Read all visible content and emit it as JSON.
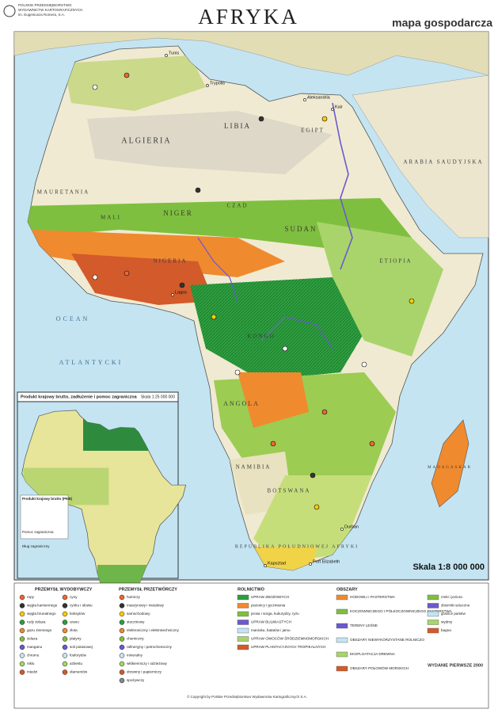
{
  "header": {
    "publisher": [
      "POLSKIE PRZEDSIĘBIORSTWO",
      "WYDAWNICTW KARTOGRAFICZNYCH",
      "im. Eugeniusza Romera, S.A."
    ],
    "title": "AFRYKA",
    "subtitle": "mapa gospodarcza"
  },
  "map": {
    "countries": [
      "ALGIERIA",
      "LIBIA",
      "EGIPT",
      "MAURETANIA",
      "MALI",
      "NIGER",
      "CZAD",
      "SUDAN",
      "ARABIA SAUDYJSKA",
      "ETIOPIA",
      "NIGERIA",
      "KONGO",
      "ANGOLA",
      "NAMIBIA",
      "BOTSWANA",
      "REPUBLIKA POŁUDNIOWEJ AFRYKI",
      "MADAGASKAR"
    ],
    "oceans": [
      "OCEAN",
      "ATLANTYCKI"
    ],
    "cities": [
      "Tunis",
      "Trypolis",
      "Aleksandria",
      "Kair",
      "Lagos",
      "Kapsztad",
      "Port Elizabeth",
      "Durban"
    ]
  },
  "inset": {
    "title": "Produkt krajowy brutto, zadłużenie i pomoc zagraniczna",
    "scale": "Skala 1:25 000 000",
    "legend_title": "Produkt krajowy brutto (PKB)",
    "aid": "Pomoc zagraniczna",
    "debt": "Dług zagraniczny"
  },
  "scale": "Skala 1:8 000 000",
  "legend": [
    {
      "title": "PRZEMYSŁ WYDOBYWCZY",
      "items": [
        "ropy",
        "węgla kamiennego",
        "węgla brunatnego",
        "rudy żelaza",
        "gazu ziemnego",
        "żelaza",
        "manganu",
        "chromu",
        "niklu",
        "miedzi"
      ]
    },
    {
      "title": "",
      "items": [
        "cyny",
        "cynku i ołowiu",
        "boksytów",
        "uranu",
        "złota",
        "platyny",
        "soli potasowej",
        "fosforytów",
        "azbestu",
        "diamentów"
      ]
    },
    {
      "title": "PRZEMYSŁ PRZETWÓRCZY",
      "items": [
        "hutniczy",
        "maszynowy i metalowy",
        "samochodowy",
        "stoczniowy",
        "elektroniczny i elektrotechniczny",
        "chemiczny",
        "rafineryjny i petrochemiczny",
        "mineralny",
        "włókienniczy i odzieżowy",
        "drzewny i papierniczy",
        "spożywczy"
      ]
    },
    {
      "title": "ROLNICTWO",
      "items": [
        "UPRAW ZBOŻOWYCH",
        "pszenicy i jęczmienia",
        "prosa i sorga, kukurydzy, ryżu",
        "UPRAW BULWIASTYCH",
        "manioku, batatów i jamu",
        "UPRAW OWOCÓW ŚRÓDZIEMNOMORSKICH",
        "UPRAW PLANTACYJNYCH TROPIKALNYCH"
      ]
    },
    {
      "title": "OBSZARY",
      "items": [
        "HODOWLI I PASTERSTWA",
        "KOCZOWNICZEGO I PÓŁKOCZOWNICZEGO PASTERSTWA",
        "TERENY LEŚNE",
        "OBSZARY NIEWYKORZYSTANE ROLNICZO",
        "EKSPLOATACJA DREWNA",
        "OBSZARY POŁOWÓW MORSKICH"
      ]
    },
    {
      "title": "",
      "items": [
        "rzeki i jeziora",
        "zbiorniki sztuczne",
        "granice państw",
        "wydmy",
        "bagna"
      ]
    }
  ],
  "footer": {
    "copyright": "© Copyright by Polskie Przedsiębiorstwo Wydawnictw Kartograficznych S.A.",
    "edition": "WYDANIE PIERWSZE 2000"
  }
}
